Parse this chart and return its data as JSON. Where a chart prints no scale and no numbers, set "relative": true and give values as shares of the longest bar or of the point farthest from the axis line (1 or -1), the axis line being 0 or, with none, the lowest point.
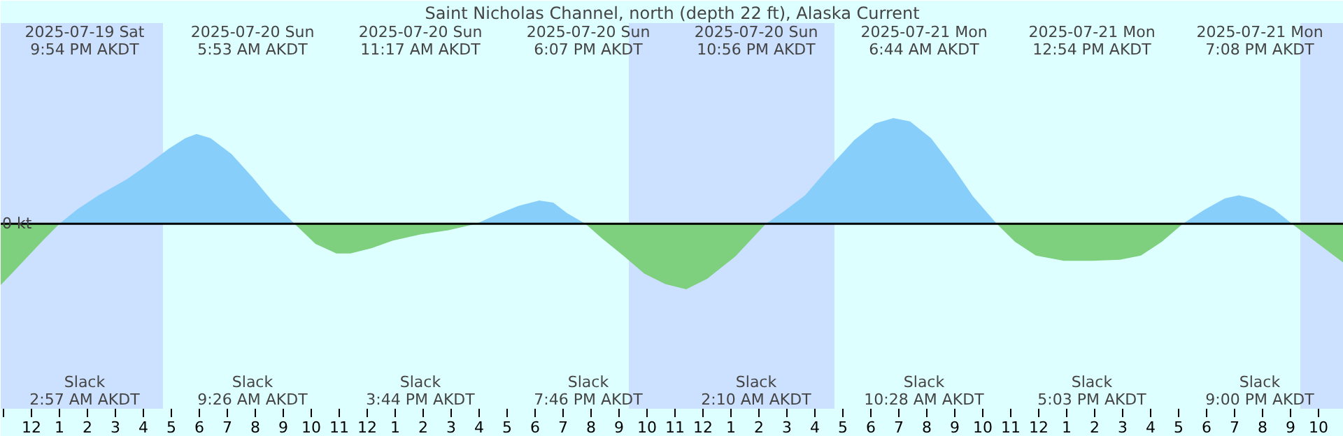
{
  "chart_data": {
    "type": "area",
    "title": "Saint Nicholas Channel, north (depth 22 ft), Alaska Current",
    "relative": true,
    "x": [
      "2025-07-19T22:54",
      "2025-07-19T23:24",
      "2025-07-19T23:54",
      "2025-07-20T00:24",
      "2025-07-20T01:00",
      "2025-07-20T01:39",
      "2025-07-20T02:24",
      "2025-07-20T03:24",
      "2025-07-20T04:09",
      "2025-07-20T04:54",
      "2025-07-20T05:30",
      "2025-07-20T05:54",
      "2025-07-20T06:24",
      "2025-07-20T07:09",
      "2025-07-20T07:54",
      "2025-07-20T08:39",
      "2025-07-20T09:24",
      "2025-07-20T10:09",
      "2025-07-20T10:54",
      "2025-07-20T11:24",
      "2025-07-20T12:09",
      "2025-07-20T12:54",
      "2025-07-20T13:54",
      "2025-07-20T14:54",
      "2025-07-20T15:54",
      "2025-07-20T16:39",
      "2025-07-20T17:24",
      "2025-07-20T18:09",
      "2025-07-20T18:39",
      "2025-07-20T19:09",
      "2025-07-20T19:48",
      "2025-07-20T20:24",
      "2025-07-20T21:09",
      "2025-07-20T21:54",
      "2025-07-20T22:39",
      "2025-07-20T23:24",
      "2025-07-21T00:09",
      "2025-07-21T01:09",
      "2025-07-21T02:15",
      "2025-07-21T02:54",
      "2025-07-21T03:39",
      "2025-07-21T04:24",
      "2025-07-21T05:24",
      "2025-07-21T06:09",
      "2025-07-21T06:48",
      "2025-07-21T07:24",
      "2025-07-21T08:09",
      "2025-07-21T08:54",
      "2025-07-21T09:39",
      "2025-07-21T10:30",
      "2025-07-21T11:09",
      "2025-07-21T11:54",
      "2025-07-21T12:54",
      "2025-07-21T13:54",
      "2025-07-21T14:54",
      "2025-07-21T15:39",
      "2025-07-21T16:24",
      "2025-07-21T17:09",
      "2025-07-21T17:54",
      "2025-07-21T18:39",
      "2025-07-21T19:09",
      "2025-07-21T19:39",
      "2025-07-21T20:24",
      "2025-07-21T21:03",
      "2025-07-21T21:39",
      "2025-07-21T22:24",
      "2025-07-21T22:54"
    ],
    "series": [
      {
        "color": "#87cefa",
        "values": [
          null,
          null,
          null,
          null,
          0,
          0.14,
          0.27,
          0.42,
          0.56,
          0.71,
          0.81,
          0.85,
          0.81,
          0.66,
          0.44,
          0.2,
          0,
          null,
          null,
          null,
          null,
          null,
          null,
          null,
          0,
          0.09,
          0.17,
          0.22,
          0.2,
          0.1,
          0,
          null,
          null,
          null,
          null,
          null,
          null,
          null,
          0,
          0.12,
          0.27,
          0.5,
          0.79,
          0.95,
          1.0,
          0.97,
          0.81,
          0.55,
          0.26,
          0,
          null,
          null,
          null,
          null,
          null,
          null,
          null,
          0,
          0.13,
          0.24,
          0.27,
          0.24,
          0.14,
          0,
          null,
          null,
          null
        ]
      },
      {
        "color": "#7ecf7e",
        "values": [
          -0.58,
          -0.44,
          -0.3,
          -0.16,
          0,
          null,
          null,
          null,
          null,
          null,
          null,
          null,
          null,
          null,
          null,
          null,
          0,
          -0.19,
          -0.28,
          -0.28,
          -0.23,
          -0.16,
          -0.1,
          -0.06,
          0,
          null,
          null,
          null,
          null,
          null,
          0,
          -0.14,
          -0.3,
          -0.47,
          -0.57,
          -0.62,
          -0.52,
          -0.31,
          0,
          null,
          null,
          null,
          null,
          null,
          null,
          null,
          null,
          null,
          null,
          0,
          -0.17,
          -0.3,
          -0.35,
          -0.35,
          -0.34,
          -0.3,
          -0.17,
          0,
          null,
          null,
          null,
          null,
          null,
          0,
          -0.12,
          -0.27,
          -0.37
        ]
      }
    ],
    "xlim": [
      "2025-07-19T22:54",
      "2025-07-21T22:54"
    ],
    "xticks": [
      {
        "value": "2025-07-19T23:00",
        "label": null
      },
      {
        "value": "2025-07-20T00:00",
        "label": "12"
      },
      {
        "value": "2025-07-20T01:00",
        "label": "1"
      },
      {
        "value": "2025-07-20T02:00",
        "label": "2"
      },
      {
        "value": "2025-07-20T03:00",
        "label": "3"
      },
      {
        "value": "2025-07-20T04:00",
        "label": "4"
      },
      {
        "value": "2025-07-20T05:00",
        "label": "5"
      },
      {
        "value": "2025-07-20T06:00",
        "label": "6"
      },
      {
        "value": "2025-07-20T07:00",
        "label": "7"
      },
      {
        "value": "2025-07-20T08:00",
        "label": "8"
      },
      {
        "value": "2025-07-20T09:00",
        "label": "9"
      },
      {
        "value": "2025-07-20T10:00",
        "label": "10"
      },
      {
        "value": "2025-07-20T11:00",
        "label": "11"
      },
      {
        "value": "2025-07-20T12:00",
        "label": "12"
      },
      {
        "value": "2025-07-20T13:00",
        "label": "1"
      },
      {
        "value": "2025-07-20T14:00",
        "label": "2"
      },
      {
        "value": "2025-07-20T15:00",
        "label": "3"
      },
      {
        "value": "2025-07-20T16:00",
        "label": "4"
      },
      {
        "value": "2025-07-20T17:00",
        "label": "5"
      },
      {
        "value": "2025-07-20T18:00",
        "label": "6"
      },
      {
        "value": "2025-07-20T19:00",
        "label": "7"
      },
      {
        "value": "2025-07-20T20:00",
        "label": "8"
      },
      {
        "value": "2025-07-20T21:00",
        "label": "9"
      },
      {
        "value": "2025-07-20T22:00",
        "label": "10"
      },
      {
        "value": "2025-07-20T23:00",
        "label": "11"
      },
      {
        "value": "2025-07-21T00:00",
        "label": "12"
      },
      {
        "value": "2025-07-21T01:00",
        "label": "1"
      },
      {
        "value": "2025-07-21T02:00",
        "label": "2"
      },
      {
        "value": "2025-07-21T03:00",
        "label": "3"
      },
      {
        "value": "2025-07-21T04:00",
        "label": "4"
      },
      {
        "value": "2025-07-21T05:00",
        "label": "5"
      },
      {
        "value": "2025-07-21T06:00",
        "label": "6"
      },
      {
        "value": "2025-07-21T07:00",
        "label": "7"
      },
      {
        "value": "2025-07-21T08:00",
        "label": "8"
      },
      {
        "value": "2025-07-21T09:00",
        "label": "9"
      },
      {
        "value": "2025-07-21T10:00",
        "label": "10"
      },
      {
        "value": "2025-07-21T11:00",
        "label": "11"
      },
      {
        "value": "2025-07-21T12:00",
        "label": "12"
      },
      {
        "value": "2025-07-21T13:00",
        "label": "1"
      },
      {
        "value": "2025-07-21T14:00",
        "label": "2"
      },
      {
        "value": "2025-07-21T15:00",
        "label": "3"
      },
      {
        "value": "2025-07-21T16:00",
        "label": "4"
      },
      {
        "value": "2025-07-21T17:00",
        "label": "5"
      },
      {
        "value": "2025-07-21T18:00",
        "label": "6"
      },
      {
        "value": "2025-07-21T19:00",
        "label": "7"
      },
      {
        "value": "2025-07-21T20:00",
        "label": "8"
      },
      {
        "value": "2025-07-21T21:00",
        "label": "9"
      },
      {
        "value": "2025-07-21T22:00",
        "label": "10"
      }
    ],
    "tick_labels": "x",
    "grid": false,
    "ref_lines": [
      {
        "axis": "y",
        "value": 0,
        "label": "0 kt",
        "color": "#000000"
      }
    ],
    "bands": [
      {
        "axis": "x",
        "from": "2025-07-19T22:54",
        "to": "2025-07-20T04:42",
        "color": "#cce0ff"
      },
      {
        "axis": "x",
        "from": "2025-07-20T21:21",
        "to": "2025-07-21T04:42",
        "color": "#cce0ff"
      },
      {
        "axis": "x",
        "from": "2025-07-21T21:21",
        "to": "2025-07-21T22:54",
        "color": "#cce0ff"
      }
    ],
    "annotations": [
      "2025-07-19 Sat\n9:54 PM AKDT",
      "2025-07-20 Sun\n5:53 AM AKDT",
      "2025-07-20 Sun\n11:17 AM AKDT",
      "2025-07-20 Sun\n6:07 PM AKDT",
      "2025-07-20 Sun\n10:56 PM AKDT",
      "2025-07-21 Mon\n6:44 AM AKDT",
      "2025-07-21 Mon\n12:54 PM AKDT",
      "2025-07-21 Mon\n7:08 PM AKDT",
      "Slack\n2:57 AM AKDT",
      "Slack\n9:26 AM AKDT",
      "Slack\n3:44 PM AKDT",
      "Slack\n7:46 PM AKDT",
      "Slack\n2:10 AM AKDT",
      "Slack\n10:28 AM AKDT",
      "Slack\n5:03 PM AKDT",
      "Slack\n9:00 PM AKDT"
    ]
  }
}
